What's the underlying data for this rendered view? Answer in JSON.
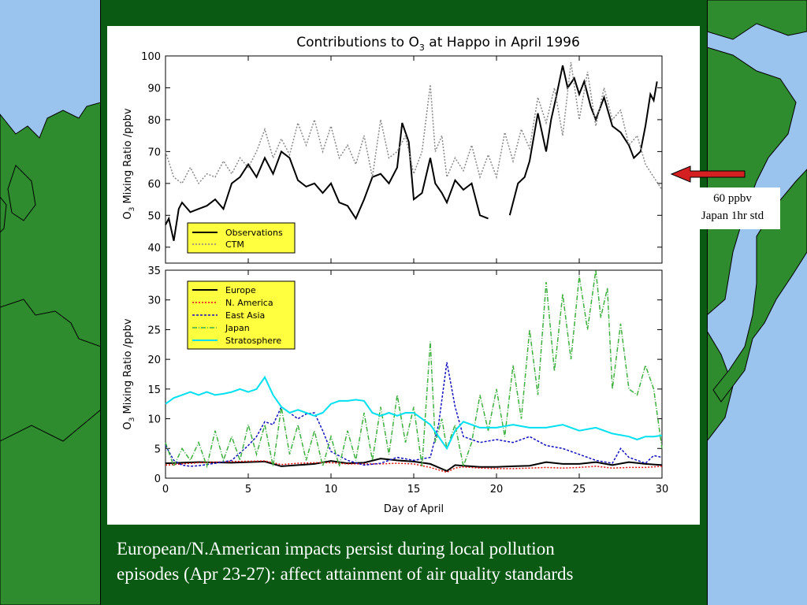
{
  "slide": {
    "caption_line1": "European/N.American impacts persist during local pollution",
    "caption_line2": "episodes (Apr 23-27):  affect attainment of air quality standards",
    "annotation_line1": "60 ppbv",
    "annotation_line2": "Japan 1hr std"
  },
  "colors": {
    "panel": "#0a5a14",
    "land": "#2e8b2e",
    "sea": "#9ac4ee",
    "arrow": "#d42020",
    "legend_bg": "#ffff40"
  },
  "chart_data": [
    {
      "type": "line",
      "title": "Contributions to O3 at Happo in April 1996",
      "xlabel": "",
      "ylabel": "O3 Mixing Ratio  /ppbv",
      "xlim": [
        0,
        30
      ],
      "ylim": [
        35,
        100
      ],
      "yticks": [
        40,
        50,
        60,
        70,
        80,
        90,
        100
      ],
      "legend_position": "bottom-left",
      "series": [
        {
          "name": "Observations",
          "color": "#000000",
          "dash": "solid",
          "x": [
            0,
            0.2,
            0.5,
            0.8,
            1,
            1.5,
            2,
            2.5,
            3,
            3.5,
            4,
            4.5,
            5,
            5.5,
            6,
            6.5,
            7,
            7.5,
            8,
            8.5,
            9,
            9.5,
            10,
            10.5,
            11,
            11.5,
            12,
            12.5,
            13,
            13.5,
            14,
            14.3,
            14.7,
            15,
            15.5,
            16,
            16.3,
            16.7,
            17,
            17.5,
            18,
            18.5,
            19,
            19.5,
            null,
            20.8,
            21.3,
            21.7,
            22,
            22.5,
            23,
            23.3,
            23.6,
            24,
            24.3,
            24.7,
            25,
            25.3,
            25.7,
            26,
            26.5,
            27,
            27.5,
            28,
            28.3,
            28.7,
            29,
            29.3,
            29.5,
            29.7
          ],
          "y": [
            47,
            49,
            42,
            52,
            54,
            51,
            52,
            53,
            55,
            52,
            60,
            62,
            66,
            62,
            68,
            63,
            70,
            68,
            61,
            59,
            60,
            57,
            60,
            54,
            53,
            49,
            55,
            62,
            63,
            60,
            65,
            79,
            73,
            55,
            57,
            68,
            60,
            57,
            54,
            61,
            58,
            60,
            50,
            49,
            null,
            50,
            60,
            62,
            67,
            82,
            70,
            80,
            87,
            97,
            90,
            93,
            88,
            92,
            84,
            80,
            87,
            78,
            76,
            72,
            68,
            70,
            78,
            88,
            86,
            92
          ]
        },
        {
          "name": "CTM",
          "color": "#888888",
          "dash": "dotted",
          "x": [
            0,
            0.5,
            1,
            1.5,
            2,
            2.5,
            3,
            3.5,
            4,
            4.5,
            5,
            5.5,
            6,
            6.5,
            7,
            7.5,
            8,
            8.5,
            9,
            9.5,
            10,
            10.5,
            11,
            11.5,
            12,
            12.5,
            13,
            13.5,
            14,
            14.5,
            15,
            15.5,
            16,
            16.3,
            16.7,
            17,
            17.5,
            18,
            18.5,
            19,
            19.5,
            20,
            20.5,
            21,
            21.5,
            22,
            22.5,
            23,
            23.5,
            24,
            24.5,
            25,
            25.5,
            26,
            26.5,
            27,
            27.5,
            28,
            28.5,
            29,
            29.5,
            30
          ],
          "y": [
            70,
            62,
            60,
            65,
            60,
            63,
            62,
            67,
            63,
            68,
            65,
            70,
            77,
            68,
            74,
            69,
            79,
            72,
            80,
            70,
            78,
            68,
            72,
            66,
            75,
            62,
            80,
            68,
            70,
            75,
            63,
            70,
            91,
            70,
            75,
            62,
            68,
            64,
            72,
            62,
            69,
            62,
            76,
            67,
            77,
            71,
            87,
            79,
            90,
            75,
            98,
            80,
            95,
            78,
            90,
            80,
            83,
            72,
            75,
            66,
            62,
            58
          ]
        }
      ]
    },
    {
      "type": "line",
      "title": "",
      "xlabel": "Day of April",
      "ylabel": "O3 Mixing Ratio /ppbv",
      "xlim": [
        0,
        30
      ],
      "ylim": [
        0,
        35
      ],
      "xticks": [
        0,
        5,
        10,
        15,
        20,
        25,
        30
      ],
      "yticks": [
        0,
        5,
        10,
        15,
        20,
        25,
        30,
        35
      ],
      "legend_position": "top-left",
      "series": [
        {
          "name": "Europe",
          "color": "#000000",
          "dash": "solid",
          "x": [
            0,
            2,
            4,
            6,
            7,
            8,
            9,
            10,
            11,
            12,
            13,
            14,
            15,
            16,
            17,
            17.5,
            18,
            19,
            20,
            21,
            22,
            23,
            24,
            25,
            26,
            27,
            28,
            29,
            30
          ],
          "y": [
            2.5,
            2.7,
            2.6,
            2.8,
            2.0,
            2.2,
            2.4,
            2.9,
            2.5,
            2.6,
            3.3,
            3.0,
            2.8,
            2.4,
            1.2,
            2.2,
            2.1,
            1.9,
            1.9,
            2.0,
            2.1,
            2.7,
            2.4,
            2.4,
            2.7,
            2.2,
            2.7,
            2.4,
            2.2
          ]
        },
        {
          "name": "N. America",
          "color": "#e01010",
          "dash": "dotted",
          "x": [
            0,
            2,
            4,
            6,
            7,
            8,
            9,
            10,
            11,
            12,
            13,
            14,
            15,
            16,
            17,
            17.5,
            18,
            19,
            20,
            21,
            22,
            23,
            24,
            25,
            26,
            27,
            28,
            29,
            30
          ],
          "y": [
            2.2,
            2.6,
            2.8,
            2.9,
            2.3,
            2.5,
            2.6,
            2.6,
            2.4,
            2.4,
            2.4,
            2.5,
            2.4,
            1.8,
            1.0,
            1.7,
            1.9,
            1.7,
            1.6,
            1.6,
            1.7,
            1.8,
            1.7,
            1.8,
            2.0,
            1.7,
            1.8,
            1.8,
            2.0
          ]
        },
        {
          "name": "East Asia",
          "color": "#1010c0",
          "dash": "dashed",
          "x": [
            0,
            0.5,
            1,
            1.5,
            2,
            3,
            4,
            5,
            5.5,
            6,
            6.5,
            7,
            7.5,
            8,
            8.5,
            9,
            9.5,
            10,
            11,
            12,
            13,
            14,
            15,
            16,
            16.5,
            17,
            17.5,
            18,
            19,
            20,
            21,
            22,
            23,
            24,
            25,
            26,
            27,
            27.5,
            28,
            29,
            29.5,
            30
          ],
          "y": [
            5.5,
            3.0,
            2.2,
            2.0,
            2.1,
            2.5,
            3.0,
            5.5,
            7.0,
            9.5,
            9.0,
            12.0,
            11.0,
            10.0,
            10.8,
            11.0,
            8.0,
            4.5,
            3.0,
            2.2,
            2.5,
            3.5,
            3.0,
            3.5,
            9.0,
            19.5,
            12.0,
            7.0,
            6.0,
            6.5,
            6.0,
            7.0,
            5.5,
            5.0,
            4.0,
            3.0,
            2.5,
            5.0,
            3.5,
            2.5,
            3.8,
            3.5
          ]
        },
        {
          "name": "Japan",
          "color": "#40b040",
          "dash": "dashdot",
          "x": [
            0,
            0.5,
            1,
            1.5,
            2,
            2.5,
            3,
            3.5,
            4,
            4.5,
            5,
            5.5,
            6,
            6.5,
            7,
            7.5,
            8,
            8.5,
            9,
            9.5,
            10,
            10.5,
            11,
            11.5,
            12,
            12.5,
            13,
            13.5,
            14,
            14.5,
            15,
            15.5,
            16,
            16.3,
            16.7,
            17,
            17.5,
            18,
            18.5,
            19,
            19.5,
            20,
            20.5,
            21,
            21.5,
            22,
            22.5,
            23,
            23.5,
            24,
            24.5,
            25,
            25.5,
            26,
            26.3,
            26.7,
            27,
            27.5,
            28,
            28.5,
            29,
            29.5,
            30
          ],
          "y": [
            6,
            2,
            5,
            3,
            6,
            2,
            8,
            3,
            7,
            3,
            9,
            4,
            9,
            2,
            12,
            4,
            9,
            3,
            8,
            2,
            7,
            2,
            8,
            3,
            11,
            3,
            12,
            4,
            14,
            6,
            12,
            2,
            23,
            6,
            10,
            5,
            9,
            2,
            6,
            14,
            8,
            15,
            7,
            19,
            10,
            25,
            14,
            33,
            18,
            31,
            20,
            34,
            25,
            35,
            27,
            32,
            15,
            26,
            15,
            14,
            19,
            15,
            5
          ]
        },
        {
          "name": "Stratosphere",
          "color": "#00e0f0",
          "dash": "solid",
          "x": [
            0,
            0.5,
            1,
            1.5,
            2,
            2.5,
            3,
            3.5,
            4,
            4.5,
            5,
            5.5,
            6,
            6.5,
            7,
            7.5,
            8,
            8.5,
            9,
            9.5,
            10,
            10.5,
            11,
            11.5,
            12,
            12.5,
            13,
            13.5,
            14,
            14.5,
            15,
            15.5,
            16,
            16.5,
            17,
            17.5,
            18,
            19,
            20,
            21,
            22,
            23,
            24,
            25,
            26,
            27,
            28,
            28.5,
            29,
            29.5,
            30
          ],
          "y": [
            12.5,
            13.5,
            14.0,
            14.5,
            14.0,
            14.5,
            14.0,
            14.2,
            14.5,
            15.0,
            14.5,
            15.0,
            17.0,
            14.0,
            12.0,
            11.0,
            11.5,
            11.0,
            10.5,
            11.0,
            12.5,
            13.0,
            13.0,
            13.2,
            13.0,
            11.0,
            10.5,
            11.0,
            10.5,
            11.0,
            11.0,
            10.0,
            9.0,
            7.0,
            5.0,
            8.0,
            9.5,
            8.5,
            8.5,
            9.0,
            8.5,
            8.5,
            9.0,
            8.0,
            8.5,
            7.5,
            7.0,
            6.5,
            7.0,
            7.0,
            7.2
          ]
        }
      ]
    }
  ]
}
